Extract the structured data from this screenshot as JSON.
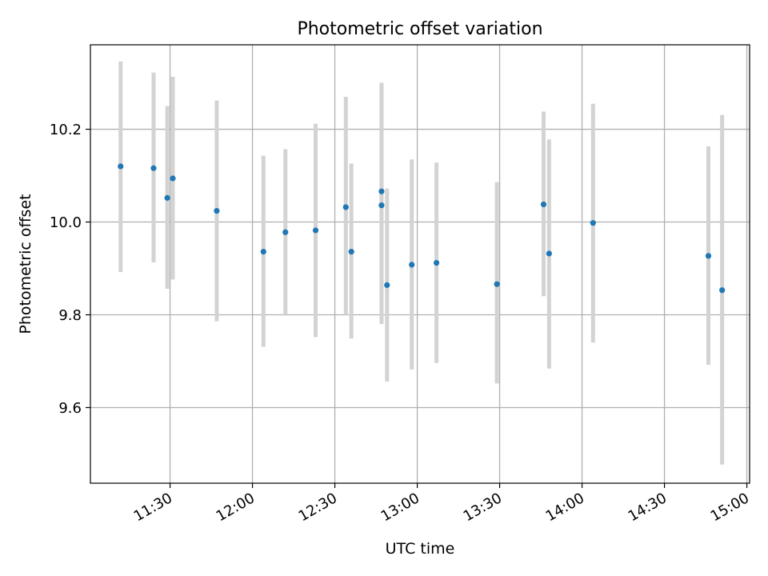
{
  "chart_data": {
    "type": "scatter",
    "title": "Photometric offset variation",
    "xlabel": "UTC time",
    "ylabel": "Photometric offset",
    "xlim": [
      "11:01",
      "15:01"
    ],
    "ylim": [
      9.437,
      10.382
    ],
    "x_ticks": [
      "11:30",
      "12:00",
      "12:30",
      "13:00",
      "13:30",
      "14:00",
      "14:30",
      "15:00"
    ],
    "y_ticks": [
      9.6,
      9.8,
      10.0,
      10.2
    ],
    "grid": true,
    "point_color": "#1f77b4",
    "errorbar_color": "#d3d3d3",
    "points": [
      {
        "x": "11:12",
        "y": 10.12,
        "yerr_low": 9.892,
        "yerr_high": 10.346
      },
      {
        "x": "11:24",
        "y": 10.116,
        "yerr_low": 9.913,
        "yerr_high": 10.322
      },
      {
        "x": "11:29",
        "y": 10.052,
        "yerr_low": 9.856,
        "yerr_high": 10.25
      },
      {
        "x": "11:31",
        "y": 10.094,
        "yerr_low": 9.876,
        "yerr_high": 10.313
      },
      {
        "x": "11:47",
        "y": 10.024,
        "yerr_low": 9.786,
        "yerr_high": 10.262
      },
      {
        "x": "12:04",
        "y": 9.936,
        "yerr_low": 9.731,
        "yerr_high": 10.143
      },
      {
        "x": "12:12",
        "y": 9.978,
        "yerr_low": 9.8,
        "yerr_high": 10.157
      },
      {
        "x": "12:23",
        "y": 9.982,
        "yerr_low": 9.752,
        "yerr_high": 10.212
      },
      {
        "x": "12:34",
        "y": 10.032,
        "yerr_low": 9.8,
        "yerr_high": 10.27
      },
      {
        "x": "12:36",
        "y": 9.936,
        "yerr_low": 9.749,
        "yerr_high": 10.126
      },
      {
        "x": "12:47",
        "y": 10.066,
        "yerr_low": 9.83,
        "yerr_high": 10.3
      },
      {
        "x": "12:47",
        "y": 10.036,
        "yerr_low": 9.78,
        "yerr_high": 10.292
      },
      {
        "x": "12:49",
        "y": 9.864,
        "yerr_low": 9.656,
        "yerr_high": 10.072
      },
      {
        "x": "12:58",
        "y": 9.908,
        "yerr_low": 9.682,
        "yerr_high": 10.135
      },
      {
        "x": "13:07",
        "y": 9.912,
        "yerr_low": 9.696,
        "yerr_high": 10.128
      },
      {
        "x": "13:29",
        "y": 9.866,
        "yerr_low": 9.652,
        "yerr_high": 10.086
      },
      {
        "x": "13:46",
        "y": 10.038,
        "yerr_low": 9.84,
        "yerr_high": 10.238
      },
      {
        "x": "13:48",
        "y": 9.932,
        "yerr_low": 9.684,
        "yerr_high": 10.178
      },
      {
        "x": "14:04",
        "y": 9.998,
        "yerr_low": 9.74,
        "yerr_high": 10.255
      },
      {
        "x": "14:46",
        "y": 9.927,
        "yerr_low": 9.692,
        "yerr_high": 10.163
      },
      {
        "x": "14:51",
        "y": 9.853,
        "yerr_low": 9.477,
        "yerr_high": 10.231
      }
    ]
  }
}
